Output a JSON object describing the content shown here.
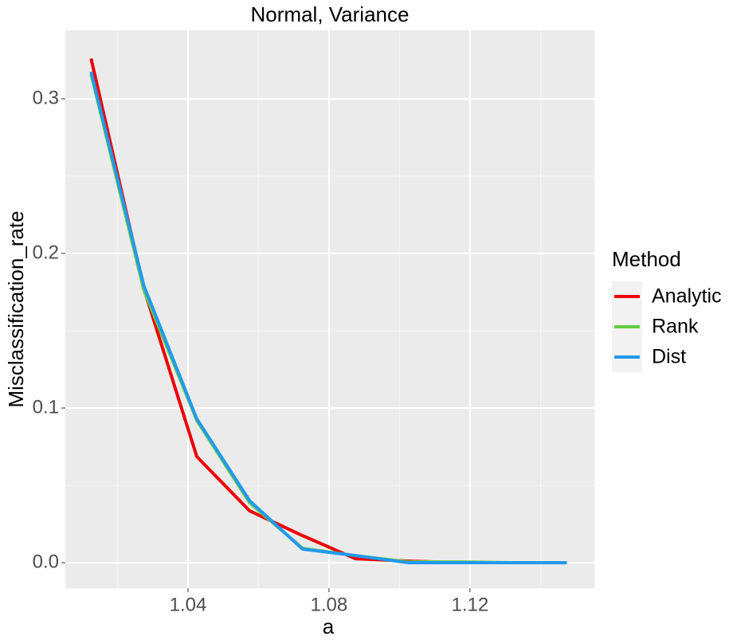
{
  "chart_data": {
    "type": "line",
    "title": "Normal, Variance",
    "x_label": "a",
    "y_label": "Misclassification_rate",
    "x": [
      1.0125,
      1.0275,
      1.0425,
      1.0575,
      1.0725,
      1.0875,
      1.1025,
      1.1175,
      1.1325,
      1.1475
    ],
    "series": [
      {
        "name": "Analytic",
        "color": "#ee0000",
        "values": [
          0.326,
          0.177,
          0.0686,
          0.0335,
          0.0175,
          0.0026,
          0.001,
          0,
          0,
          0
        ]
      },
      {
        "name": "Rank",
        "color": "#66cc44",
        "values": [
          0.316,
          0.176,
          0.092,
          0.0387,
          0.0093,
          0.0046,
          0.0005,
          0.0005,
          0,
          0
        ]
      },
      {
        "name": "Dist",
        "color": "#2299ee",
        "values": [
          0.3175,
          0.179,
          0.093,
          0.04,
          0.0088,
          0.0046,
          0,
          0,
          0,
          0
        ]
      }
    ],
    "legend_title": "Method",
    "xlim": [
      1.0052,
      1.1553
    ],
    "xticks": [
      1.04,
      1.08,
      1.12
    ],
    "ylim": [
      -0.0165,
      0.3443
    ],
    "yticks": [
      {
        "value": 0,
        "label": "0.0"
      },
      0.1,
      0.2,
      0.3
    ],
    "grid": true,
    "legend": "right"
  }
}
